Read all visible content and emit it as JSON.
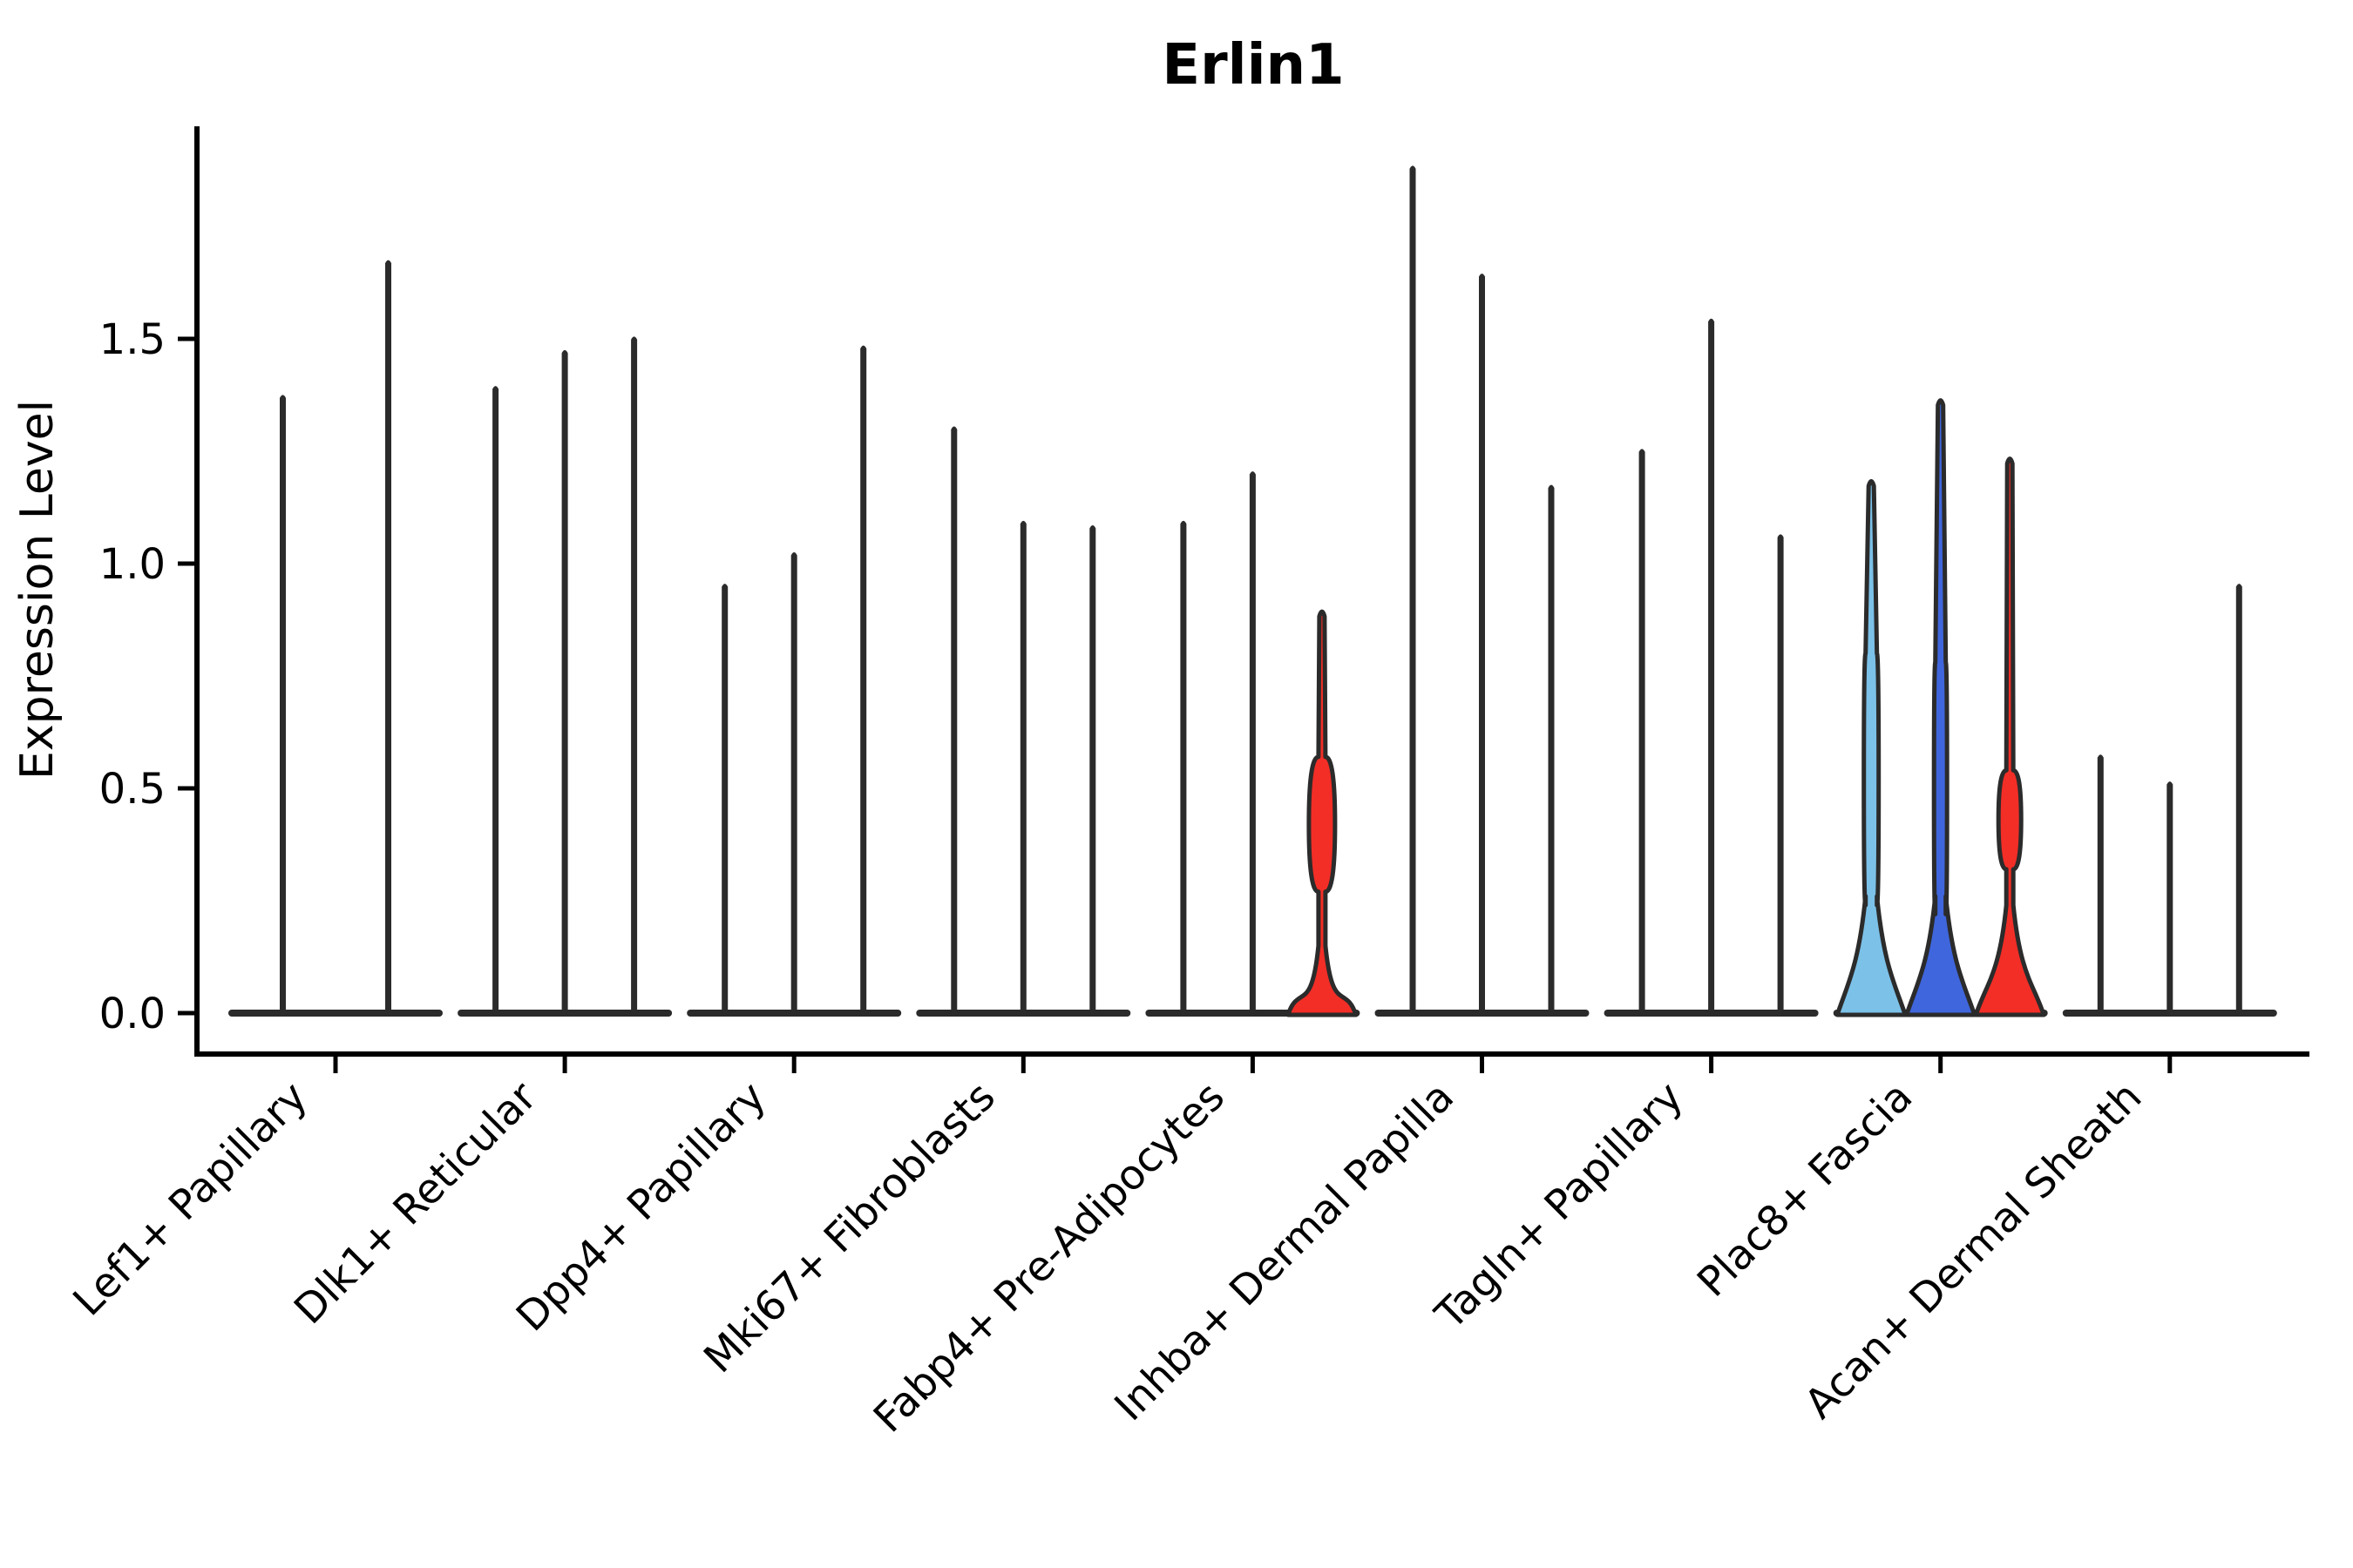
{
  "chart_data": {
    "type": "violin",
    "title": "Erlin1",
    "ylabel": "Expression Level",
    "xlabel": "",
    "ylim": [
      0,
      1.97
    ],
    "yticks": [
      0,
      0.5,
      1,
      1.5
    ],
    "ytick_labels": [
      "0.0",
      "0.5",
      "1.0",
      "1.5"
    ],
    "grid": false,
    "legend": "none",
    "categories": [
      "Lef1+ Papillary",
      "Dlk1+ Reticular",
      "Dpp4+ Papillary",
      "Mki67+ Fibroblasts",
      "Fabp4+ Pre-Adipocytes",
      "Inhba+ Dermal Papilla",
      "Tagln+ Papillary",
      "Plac8+ Fascia",
      "Acan+ Dermal Sheath"
    ],
    "groups": [
      {
        "category": "Lef1+ Papillary",
        "violins": [
          {
            "max": 1.38,
            "style": "thin"
          },
          {
            "max": 1.68,
            "style": "thin"
          }
        ]
      },
      {
        "category": "Dlk1+ Reticular",
        "violins": [
          {
            "max": 1.4,
            "style": "thin"
          },
          {
            "max": 1.48,
            "style": "thin"
          },
          {
            "max": 1.51,
            "style": "thin"
          }
        ]
      },
      {
        "category": "Dpp4+ Papillary",
        "violins": [
          {
            "max": 0.96,
            "style": "thin"
          },
          {
            "max": 1.03,
            "style": "thin"
          },
          {
            "max": 1.49,
            "style": "thin"
          }
        ]
      },
      {
        "category": "Mki67+ Fibroblasts",
        "violins": [
          {
            "max": 1.31,
            "style": "thin"
          },
          {
            "max": 1.1,
            "style": "thin"
          },
          {
            "max": 1.09,
            "style": "thin"
          }
        ]
      },
      {
        "category": "Fabp4+ Pre-Adipocytes",
        "violins": [
          {
            "max": 1.1,
            "style": "thin"
          },
          {
            "max": 1.21,
            "style": "thin"
          },
          {
            "max": 0.9,
            "style": "filled",
            "fill_key": "red",
            "neck": 4,
            "flare": 0.15,
            "bulge": {
              "center": 0.42,
              "span": 0.15,
              "width": 30
            }
          }
        ]
      },
      {
        "category": "Inhba+ Dermal Papilla",
        "violins": [
          {
            "max": 1.89,
            "style": "thin"
          },
          {
            "max": 1.65,
            "style": "thin"
          },
          {
            "max": 1.18,
            "style": "thin"
          }
        ]
      },
      {
        "category": "Tagln+ Papillary",
        "violins": [
          {
            "max": 1.26,
            "style": "thin"
          },
          {
            "max": 1.55,
            "style": "thin"
          },
          {
            "max": 1.07,
            "style": "thin"
          }
        ]
      },
      {
        "category": "Plac8+ Fascia",
        "violins": [
          {
            "max": 1.19,
            "style": "filled",
            "fill_key": "light_blue",
            "neck": 6.5,
            "flare": 0.26,
            "bulge": {
              "center": 0.52,
              "span": 0.28,
              "width": 17
            }
          },
          {
            "max": 1.37,
            "style": "filled",
            "fill_key": "blue",
            "neck": 6,
            "flare": 0.26,
            "bulge": {
              "center": 0.5,
              "span": 0.28,
              "width": 15
            }
          },
          {
            "max": 1.24,
            "style": "filled",
            "fill_key": "red",
            "neck": 4,
            "flare": 0.24,
            "bulge": {
              "center": 0.43,
              "span": 0.11,
              "width": 26
            }
          }
        ]
      },
      {
        "category": "Acan+ Dermal Sheath",
        "violins": [
          {
            "max": 0.58,
            "style": "thin"
          },
          {
            "max": 0.52,
            "style": "thin"
          },
          {
            "max": 0.96,
            "style": "thin"
          }
        ]
      }
    ],
    "colors": {
      "thin": "#2B2B2B",
      "outline": "#2B2B2B",
      "light_blue": "#7CC1E8",
      "blue": "#3F66DC",
      "red": "#F22E27",
      "axis": "#000000",
      "background": "#FFFFFF"
    }
  }
}
